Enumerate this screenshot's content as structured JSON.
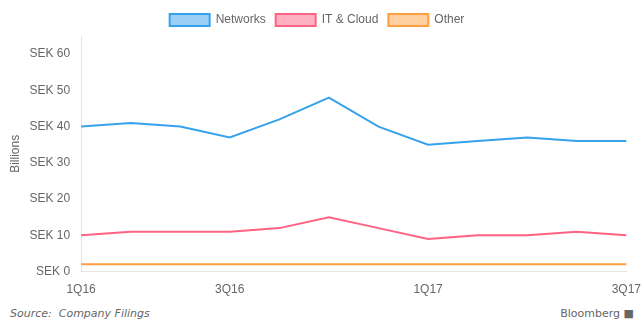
{
  "chart_data": {
    "type": "line",
    "categories": [
      "1Q16",
      null,
      null,
      "3Q16",
      null,
      null,
      null,
      "1Q17",
      null,
      null,
      null,
      "3Q17"
    ],
    "series": [
      {
        "name": "Networks",
        "values": [
          40,
          41,
          40,
          37,
          42,
          48,
          40,
          35,
          36,
          37,
          36,
          36
        ]
      },
      {
        "name": "IT & Cloud",
        "values": [
          10,
          11,
          11,
          11,
          12,
          15,
          12,
          9,
          10,
          10,
          11,
          10
        ]
      },
      {
        "name": "Other",
        "values": [
          2,
          2,
          2,
          2,
          2,
          2,
          2,
          2,
          2,
          2,
          2,
          2
        ]
      }
    ],
    "ylabel": "Billions",
    "ylim": [
      0,
      65
    ],
    "yticks": [
      {
        "value": 0,
        "label": "SEK 0"
      },
      {
        "value": 10,
        "label": "SEK 10"
      },
      {
        "value": 20,
        "label": "SEK 20"
      },
      {
        "value": 30,
        "label": "SEK 30"
      },
      {
        "value": 40,
        "label": "SEK 40"
      },
      {
        "value": 50,
        "label": "SEK 50"
      },
      {
        "value": 60,
        "label": "SEK 60"
      }
    ],
    "grid": false,
    "legend": "top",
    "annotations": [
      "Source:  Company Filings",
      "Bloomberg ■"
    ]
  }
}
